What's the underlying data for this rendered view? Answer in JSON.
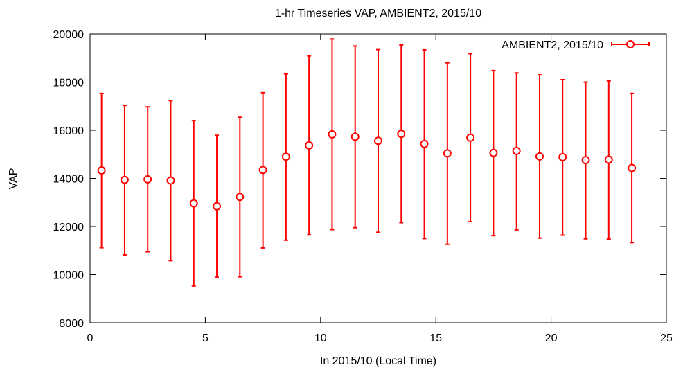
{
  "chart_data": {
    "type": "scatter",
    "title": "1-hr Timeseries VAP, AMBIENT2, 2015/10",
    "xlabel": "In 2015/10 (Local Time)",
    "ylabel": "VAP",
    "xlim": [
      0,
      25
    ],
    "ylim": [
      8000,
      20000
    ],
    "xticks": [
      0,
      5,
      10,
      15,
      20,
      25
    ],
    "yticks": [
      8000,
      10000,
      12000,
      14000,
      16000,
      18000,
      20000
    ],
    "legend_position": "top-right",
    "grid": false,
    "series": [
      {
        "name": "AMBIENT2, 2015/10",
        "color": "#ff0000",
        "marker": "circle",
        "error_bars": true,
        "x": [
          0.5,
          1.5,
          2.5,
          3.5,
          4.5,
          5.5,
          6.5,
          7.5,
          8.5,
          9.5,
          10.5,
          11.5,
          12.5,
          13.5,
          14.5,
          15.5,
          16.5,
          17.5,
          18.5,
          19.5,
          20.5,
          21.5,
          22.5,
          23.5
        ],
        "y": [
          14330,
          13940,
          13960,
          13910,
          12960,
          12840,
          13230,
          14350,
          14900,
          15370,
          15830,
          15730,
          15560,
          15850,
          15430,
          15040,
          15690,
          15060,
          15140,
          14910,
          14880,
          14760,
          14780,
          14430
        ],
        "y_low": [
          11120,
          10820,
          10950,
          10580,
          9530,
          9890,
          9910,
          11110,
          11430,
          11650,
          11870,
          11950,
          11760,
          12160,
          11500,
          11260,
          12200,
          11620,
          11860,
          11520,
          11640,
          11490,
          11480,
          11330
        ],
        "y_high": [
          17530,
          17030,
          16970,
          17230,
          16400,
          15790,
          16540,
          17560,
          18340,
          19090,
          19790,
          19500,
          19350,
          19540,
          19340,
          18800,
          19180,
          18480,
          18380,
          18300,
          18100,
          18000,
          18050,
          17530
        ]
      }
    ]
  }
}
